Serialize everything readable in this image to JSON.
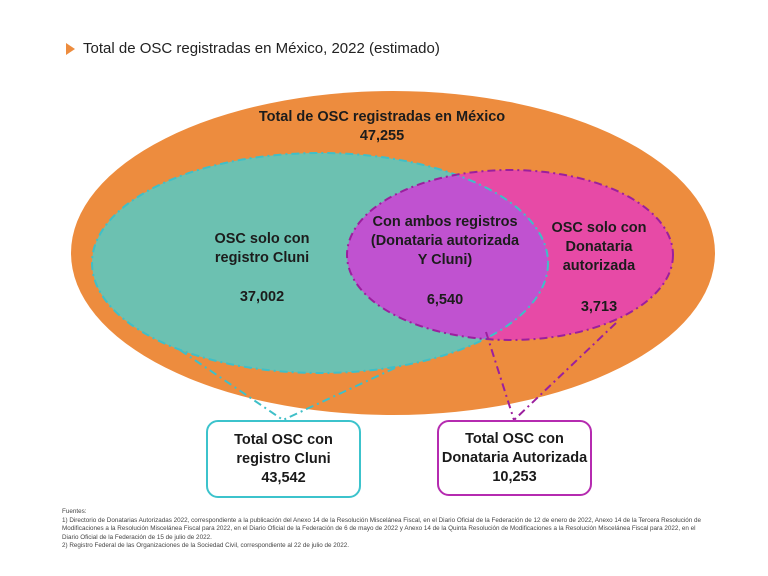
{
  "title": "Total de OSC registradas en México, 2022 (estimado)",
  "diagram": {
    "outer": {
      "label": "Total de OSC registradas en México",
      "value": "47,255",
      "color": "#ed8c3e"
    },
    "cluni_only": {
      "label_line1": "OSC solo con",
      "label_line2": "registro Cluni",
      "value": "37,002",
      "color": "#6cc1b1"
    },
    "both": {
      "label_line1": "Con ambos registros",
      "label_line2": "(Donataria autorizada",
      "label_line3": "Y Cluni)",
      "value": "6,540",
      "color": "#c052d0"
    },
    "donataria_only": {
      "label_line1": "OSC solo con",
      "label_line2": "Donataria",
      "label_line3": "autorizada",
      "value": "3,713",
      "color": "#e74aa6"
    }
  },
  "totals": {
    "cluni": {
      "line1": "Total OSC con",
      "line2": "registro Cluni",
      "value": "43,542",
      "border_color": "#3cc3cc"
    },
    "donataria": {
      "line1": "Total OSC con",
      "line2": "Donataria Autorizada",
      "value": "10,253",
      "border_color": "#b52bb0"
    }
  },
  "sources": {
    "heading": "Fuentes:",
    "items": [
      "1) Directorio de Donatarias Autorizadas 2022, correspondiente a la publicación del Anexo 14 de la Resolución Miscelánea Fiscal, en el Diario Oficial de la Federación de 12 de enero de 2022, Anexo 14 de la Tercera Resolución de Modificaciones a la Resolución Miscelánea Fiscal para 2022, en el Diario Oficial de la Federación de 6 de mayo de 2022 y Anexo 14 de la Quinta Resolución de Modificaciones a la Resolución Miscelánea Fiscal para 2022, en el Diario Oficial de la Federación de 15 de julio de 2022.",
      "2) Registro Federal de las Organizaciones de la Sociedad Civil, correspondiente al 22 de julio de 2022."
    ]
  }
}
